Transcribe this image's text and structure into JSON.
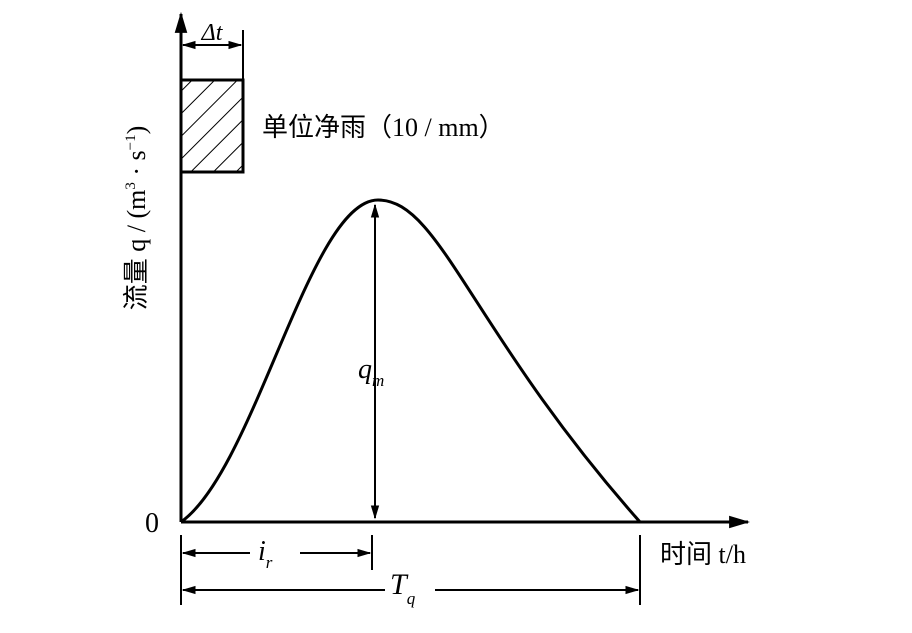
{
  "rain_label": "单位净雨（10 / mm）",
  "delta_t": "Δt",
  "y_axis_label": {
    "text": "流量 q / (m",
    "sup1": "3",
    "mid": " · s",
    "sup2": "−1",
    "end": ")"
  },
  "origin": "0",
  "peak_label": {
    "base": "q",
    "sub": "m"
  },
  "x_axis_label": "时间 t/h",
  "rise_time": {
    "base": "i",
    "sub": "r"
  },
  "base_time": {
    "base": "T",
    "sub": "q"
  }
}
